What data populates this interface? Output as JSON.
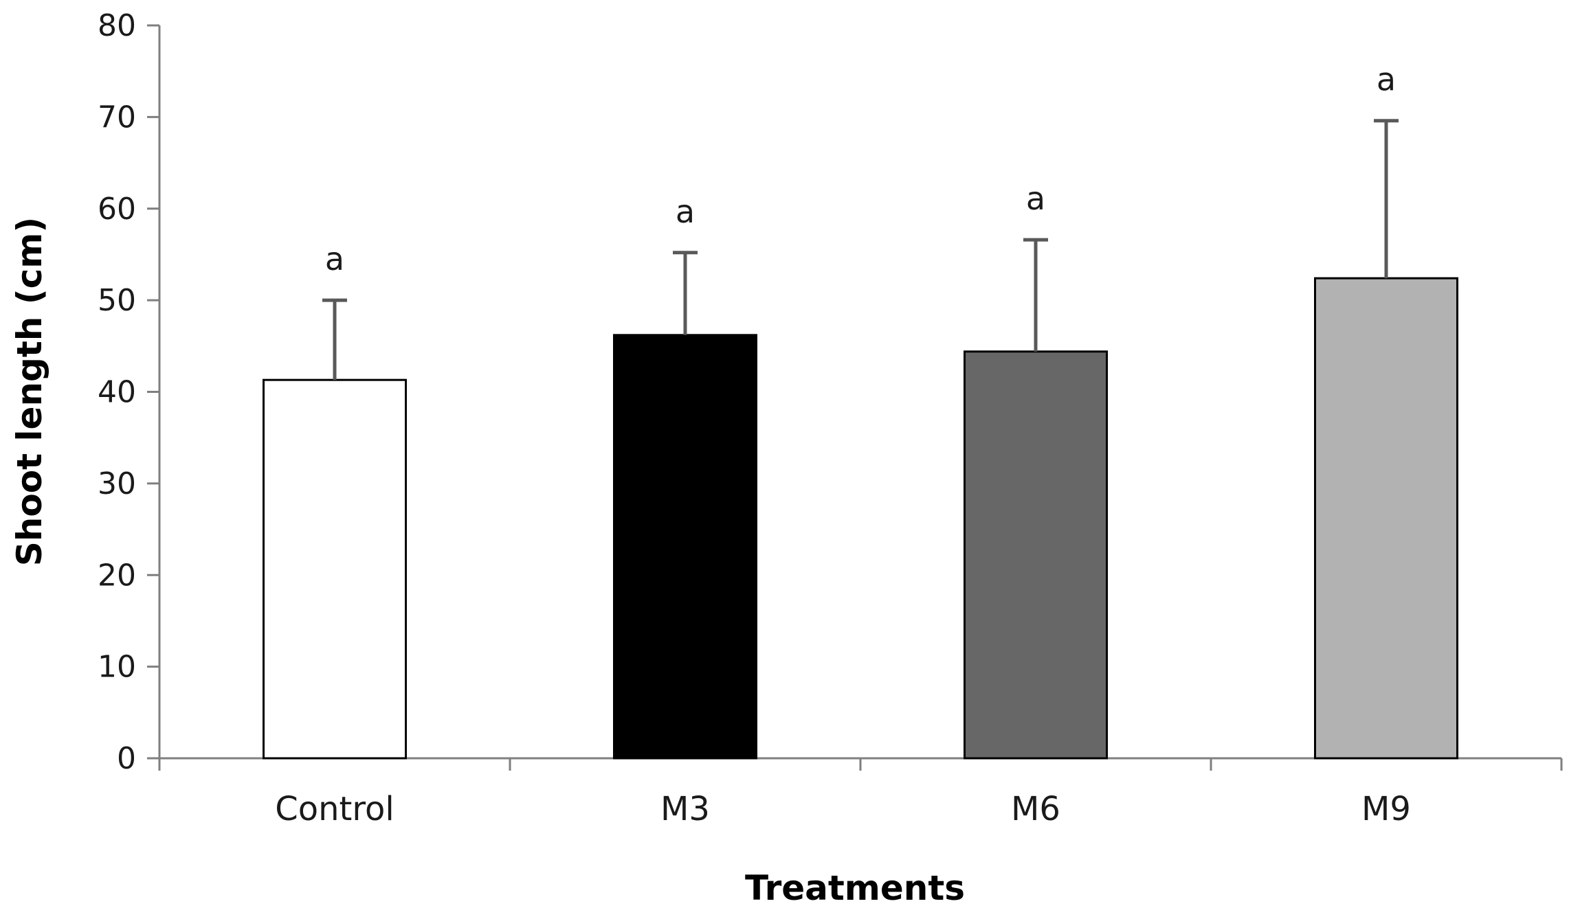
{
  "chart_data": {
    "type": "bar",
    "title": "",
    "xlabel": "Treatments",
    "ylabel": "Shoot length (cm)",
    "ylim": [
      0,
      80
    ],
    "yticks": [
      0,
      10,
      20,
      30,
      40,
      50,
      60,
      70,
      80
    ],
    "ytick_labels": [
      "0",
      "10",
      "20",
      "30",
      "40",
      "50",
      "60",
      "70",
      "80"
    ],
    "categories": [
      "Control",
      "M3",
      "M6",
      "M9"
    ],
    "values": [
      41.3,
      46.2,
      44.4,
      52.4
    ],
    "error_upper": [
      8.7,
      9.0,
      12.2,
      17.2
    ],
    "significance_letters": [
      "a",
      "a",
      "a",
      "a"
    ],
    "bar_colors": [
      "#ffffff",
      "#000000",
      "#676767",
      "#b2b2b2"
    ],
    "error_bar_color": "#595959",
    "axis_color": "#7f7f7f",
    "grid": false,
    "legend": "none"
  }
}
